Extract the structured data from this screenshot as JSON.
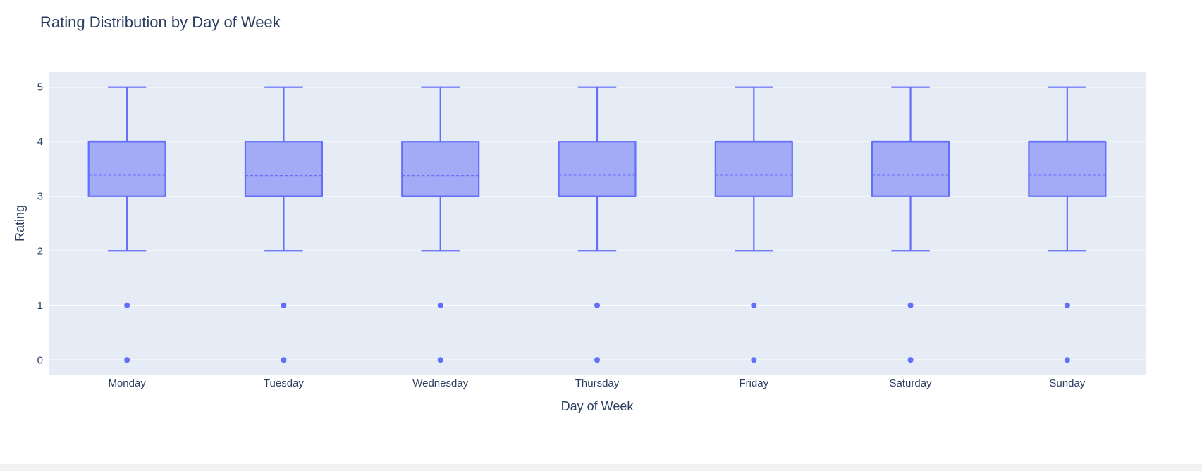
{
  "chart_data": {
    "type": "box",
    "title": "Rating Distribution by Day of Week",
    "xlabel": "Day of Week",
    "ylabel": "Rating",
    "ylim": [
      -0.28,
      5.28
    ],
    "yticks": [
      0,
      1,
      2,
      3,
      4,
      5
    ],
    "grid": true,
    "legend": "none",
    "colors": {
      "box_line": "#636efa",
      "box_fill": "#a3abf7",
      "plot_bg": "#e5ecf6",
      "grid": "#ffffff",
      "text": "#2a3f5f"
    },
    "categories": [
      "Monday",
      "Tuesday",
      "Wednesday",
      "Thursday",
      "Friday",
      "Saturday",
      "Sunday"
    ],
    "boxes": [
      {
        "category": "Monday",
        "min": 2,
        "q1": 3,
        "median": 4,
        "q3": 4,
        "max": 5,
        "mean": 3.39,
        "outliers": [
          0,
          1
        ]
      },
      {
        "category": "Tuesday",
        "min": 2,
        "q1": 3,
        "median": 3,
        "q3": 4,
        "max": 5,
        "mean": 3.38,
        "outliers": [
          0,
          1
        ]
      },
      {
        "category": "Wednesday",
        "min": 2,
        "q1": 3,
        "median": 3,
        "q3": 4,
        "max": 5,
        "mean": 3.38,
        "outliers": [
          0,
          1
        ]
      },
      {
        "category": "Thursday",
        "min": 2,
        "q1": 3,
        "median": 3,
        "q3": 4,
        "max": 5,
        "mean": 3.39,
        "outliers": [
          0,
          1
        ]
      },
      {
        "category": "Friday",
        "min": 2,
        "q1": 3,
        "median": 4,
        "q3": 4,
        "max": 5,
        "mean": 3.39,
        "outliers": [
          0,
          1
        ]
      },
      {
        "category": "Saturday",
        "min": 2,
        "q1": 3,
        "median": 4,
        "q3": 4,
        "max": 5,
        "mean": 3.39,
        "outliers": [
          0,
          1
        ]
      },
      {
        "category": "Sunday",
        "min": 2,
        "q1": 3,
        "median": 4,
        "q3": 4,
        "max": 5,
        "mean": 3.39,
        "outliers": [
          0,
          1
        ]
      }
    ]
  }
}
